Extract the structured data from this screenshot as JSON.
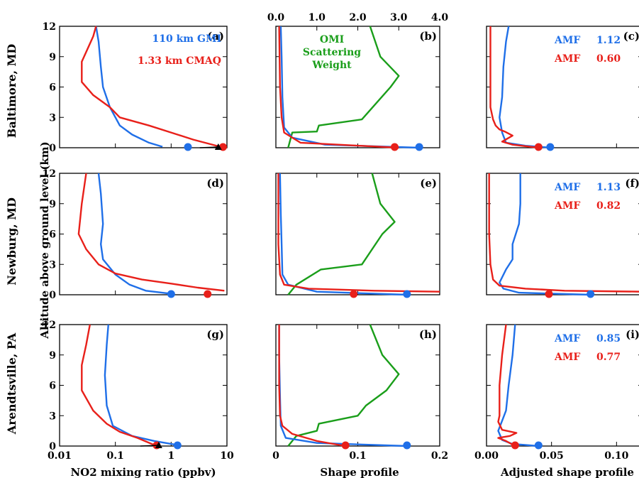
{
  "colors": {
    "gmi": "#1f6fe8",
    "cmaq": "#e8201a",
    "sw": "#1a9e1a",
    "axis": "#000000"
  },
  "ylabel": "Altitude above ground level (km)",
  "rows": [
    "Baltimore, MD",
    "Newburg, MD",
    "Arendtsville, PA"
  ],
  "xlabels": [
    "NO2 mixing ratio (ppbv)",
    "Shape profile",
    "Adjusted shape profile"
  ],
  "legend": {
    "gmi": "110 km GMI",
    "cmaq": "1.33 km CMAQ"
  },
  "sw_label": [
    "OMI",
    "Scattering",
    "Weight"
  ],
  "chart_data": {
    "type": "line",
    "y_ticks": [
      0,
      3,
      6,
      9,
      12
    ],
    "ylim": [
      0,
      12
    ],
    "col1_xlim": [
      0.01,
      10
    ],
    "col1_xscale": "log",
    "col1_ticks": [
      "0.01",
      "0.1",
      "1",
      "10"
    ],
    "col2_xlim": [
      0,
      0.2
    ],
    "col2_ticks": [
      "0",
      "0.1",
      "0.2"
    ],
    "col3_xlim": [
      0,
      0.12
    ],
    "col3_ticks": [
      "0.00",
      "0.05",
      "0.10"
    ],
    "sw_xlim": [
      0,
      4
    ],
    "sw_ticks": [
      "0.0",
      "1.0",
      "2.0",
      "3.0",
      "4.0"
    ],
    "panels": [
      {
        "label": "(a)",
        "col": 0,
        "row": 0,
        "gmi": [
          [
            0.7,
            0.1
          ],
          [
            0.4,
            0.5
          ],
          [
            0.2,
            1.3
          ],
          [
            0.12,
            2.2
          ],
          [
            0.08,
            4
          ],
          [
            0.06,
            6
          ],
          [
            0.055,
            8
          ],
          [
            0.05,
            10.5
          ],
          [
            0.045,
            12
          ]
        ],
        "cmaq": [
          [
            7,
            0.15
          ],
          [
            2.5,
            0.8
          ],
          [
            1,
            1.5
          ],
          [
            0.4,
            2.2
          ],
          [
            0.12,
            3
          ],
          [
            0.08,
            4
          ],
          [
            0.04,
            5.2
          ],
          [
            0.025,
            6.5
          ],
          [
            0.025,
            8.5
          ],
          [
            0.04,
            11
          ],
          [
            0.045,
            12
          ]
        ],
        "gmi_sfc": 2.0,
        "cmaq_sfc": 8.5,
        "tri": 7.0
      },
      {
        "label": "(b)",
        "col": 1,
        "row": 0,
        "gmi": [
          [
            0.175,
            0
          ],
          [
            0.06,
            0.3
          ],
          [
            0.02,
            1
          ],
          [
            0.01,
            2
          ],
          [
            0.008,
            5
          ],
          [
            0.007,
            9
          ],
          [
            0.006,
            12
          ]
        ],
        "cmaq": [
          [
            0.15,
            0
          ],
          [
            0.03,
            0.5
          ],
          [
            0.01,
            1.5
          ],
          [
            0.007,
            3
          ],
          [
            0.005,
            6
          ],
          [
            0.004,
            12
          ]
        ],
        "gmi_sfc": 0.175,
        "cmaq_sfc": 0.145,
        "sw": [
          [
            0.3,
            0
          ],
          [
            0.4,
            1.5
          ],
          [
            1,
            1.6
          ],
          [
            1.05,
            2.2
          ],
          [
            2.1,
            2.8
          ],
          [
            2.8,
            6
          ],
          [
            3.0,
            7.1
          ],
          [
            2.55,
            9
          ],
          [
            2.3,
            12
          ]
        ]
      },
      {
        "label": "(c)",
        "col": 2,
        "row": 0,
        "gmi": [
          [
            0.05,
            0
          ],
          [
            0.03,
            0.2
          ],
          [
            0.015,
            0.5
          ],
          [
            0.012,
            1.5
          ],
          [
            0.01,
            3
          ],
          [
            0.012,
            5
          ],
          [
            0.013,
            8
          ],
          [
            0.015,
            10.5
          ],
          [
            0.017,
            12
          ]
        ],
        "cmaq": [
          [
            0.04,
            0
          ],
          [
            0.02,
            0.3
          ],
          [
            0.012,
            0.6
          ],
          [
            0.02,
            1.2
          ],
          [
            0.014,
            1.6
          ],
          [
            0.01,
            1.8
          ],
          [
            0.007,
            2.2
          ],
          [
            0.005,
            2.8
          ],
          [
            0.003,
            4
          ],
          [
            0.003,
            7
          ],
          [
            0.003,
            12
          ]
        ],
        "gmi_sfc": 0.049,
        "cmaq_sfc": 0.04,
        "amf": [
          {
            "name": "AMF",
            "value": "1.12"
          },
          {
            "name": "AMF",
            "value": "0.60"
          }
        ]
      },
      {
        "label": "(d)",
        "col": 0,
        "row": 1,
        "gmi": [
          [
            1,
            0.1
          ],
          [
            0.35,
            0.4
          ],
          [
            0.18,
            1
          ],
          [
            0.1,
            2
          ],
          [
            0.06,
            3.5
          ],
          [
            0.055,
            5
          ],
          [
            0.06,
            7
          ],
          [
            0.055,
            10
          ],
          [
            0.05,
            12
          ]
        ],
        "cmaq": [
          [
            9,
            0.4
          ],
          [
            3,
            0.7
          ],
          [
            1,
            1.1
          ],
          [
            0.3,
            1.5
          ],
          [
            0.1,
            2.1
          ],
          [
            0.05,
            3
          ],
          [
            0.03,
            4.5
          ],
          [
            0.022,
            6
          ],
          [
            0.025,
            9
          ],
          [
            0.03,
            12
          ]
        ],
        "gmi_sfc": 1.0,
        "cmaq_sfc": 4.5
      },
      {
        "label": "(e)",
        "col": 1,
        "row": 1,
        "gmi": [
          [
            0.16,
            0
          ],
          [
            0.05,
            0.3
          ],
          [
            0.015,
            1
          ],
          [
            0.008,
            2
          ],
          [
            0.007,
            5
          ],
          [
            0.006,
            8
          ],
          [
            0.005,
            12
          ]
        ],
        "cmaq": [
          [
            0.2,
            0.3
          ],
          [
            0.12,
            0.4
          ],
          [
            0.04,
            0.6
          ],
          [
            0.01,
            1
          ],
          [
            0.005,
            2
          ],
          [
            0.003,
            5
          ],
          [
            0.003,
            12
          ]
        ],
        "gmi_sfc": 0.16,
        "cmaq_sfc": 0.095,
        "sw": [
          [
            0.3,
            0
          ],
          [
            0.5,
            1
          ],
          [
            1.1,
            2.5
          ],
          [
            2.1,
            3
          ],
          [
            2.6,
            6
          ],
          [
            2.9,
            7.2
          ],
          [
            2.55,
            9
          ],
          [
            2.35,
            12
          ]
        ]
      },
      {
        "label": "(f)",
        "col": 2,
        "row": 1,
        "gmi": [
          [
            0.08,
            0
          ],
          [
            0.025,
            0.2
          ],
          [
            0.013,
            0.6
          ],
          [
            0.01,
            1.2
          ],
          [
            0.015,
            2.5
          ],
          [
            0.02,
            3.5
          ],
          [
            0.02,
            5
          ],
          [
            0.025,
            7
          ],
          [
            0.026,
            9
          ],
          [
            0.026,
            12
          ]
        ],
        "cmaq": [
          [
            0.12,
            0.3
          ],
          [
            0.06,
            0.4
          ],
          [
            0.03,
            0.6
          ],
          [
            0.01,
            0.9
          ],
          [
            0.005,
            1.5
          ],
          [
            0.003,
            3
          ],
          [
            0.002,
            6
          ],
          [
            0.002,
            12
          ]
        ],
        "gmi_sfc": 0.08,
        "cmaq_sfc": 0.048,
        "amf": [
          {
            "name": "AMF",
            "value": "1.13"
          },
          {
            "name": "AMF",
            "value": "0.82"
          }
        ]
      },
      {
        "label": "(g)",
        "col": 0,
        "row": 2,
        "gmi": [
          [
            1.3,
            0.1
          ],
          [
            0.5,
            0.5
          ],
          [
            0.2,
            1
          ],
          [
            0.09,
            2
          ],
          [
            0.07,
            4
          ],
          [
            0.065,
            7
          ],
          [
            0.07,
            10
          ],
          [
            0.075,
            12
          ]
        ],
        "cmaq": [
          [
            0.5,
            0.1
          ],
          [
            0.25,
            0.8
          ],
          [
            0.12,
            1.4
          ],
          [
            0.07,
            2.2
          ],
          [
            0.04,
            3.5
          ],
          [
            0.025,
            5.5
          ],
          [
            0.025,
            8
          ],
          [
            0.03,
            10
          ],
          [
            0.035,
            12
          ]
        ],
        "gmi_sfc": 1.3,
        "cmaq_sfc": 0.55,
        "tri": 0.6
      },
      {
        "label": "(h)",
        "col": 1,
        "row": 2,
        "gmi": [
          [
            0.16,
            0
          ],
          [
            0.05,
            0.3
          ],
          [
            0.012,
            0.8
          ],
          [
            0.006,
            2
          ],
          [
            0.005,
            5
          ],
          [
            0.004,
            9
          ],
          [
            0.004,
            12
          ]
        ],
        "cmaq": [
          [
            0.085,
            0
          ],
          [
            0.05,
            0.5
          ],
          [
            0.02,
            1.2
          ],
          [
            0.008,
            2
          ],
          [
            0.005,
            3
          ],
          [
            0.004,
            6
          ],
          [
            0.004,
            12
          ]
        ],
        "gmi_sfc": 0.16,
        "cmaq_sfc": 0.085,
        "sw": [
          [
            0.3,
            0
          ],
          [
            0.5,
            1
          ],
          [
            1,
            1.5
          ],
          [
            1.05,
            2.2
          ],
          [
            2.0,
            3
          ],
          [
            2.2,
            4
          ],
          [
            2.7,
            5.5
          ],
          [
            3.0,
            7.1
          ],
          [
            2.6,
            9
          ],
          [
            2.3,
            12
          ]
        ]
      },
      {
        "label": "(i)",
        "col": 2,
        "row": 2,
        "gmi": [
          [
            0.04,
            0
          ],
          [
            0.02,
            0.2
          ],
          [
            0.012,
            0.6
          ],
          [
            0.009,
            1.5
          ],
          [
            0.012,
            2.5
          ],
          [
            0.015,
            3.5
          ],
          [
            0.017,
            6
          ],
          [
            0.02,
            9
          ],
          [
            0.022,
            12
          ]
        ],
        "cmaq": [
          [
            0.022,
            0
          ],
          [
            0.015,
            0.5
          ],
          [
            0.009,
            0.8
          ],
          [
            0.018,
            1
          ],
          [
            0.023,
            1.3
          ],
          [
            0.012,
            1.6
          ],
          [
            0.009,
            2.4
          ],
          [
            0.01,
            3
          ],
          [
            0.01,
            6
          ],
          [
            0.012,
            9
          ],
          [
            0.015,
            12
          ]
        ],
        "gmi_sfc": 0.04,
        "cmaq_sfc": 0.022,
        "amf": [
          {
            "name": "AMF",
            "value": "0.85"
          },
          {
            "name": "AMF",
            "value": "0.77"
          }
        ]
      }
    ]
  }
}
